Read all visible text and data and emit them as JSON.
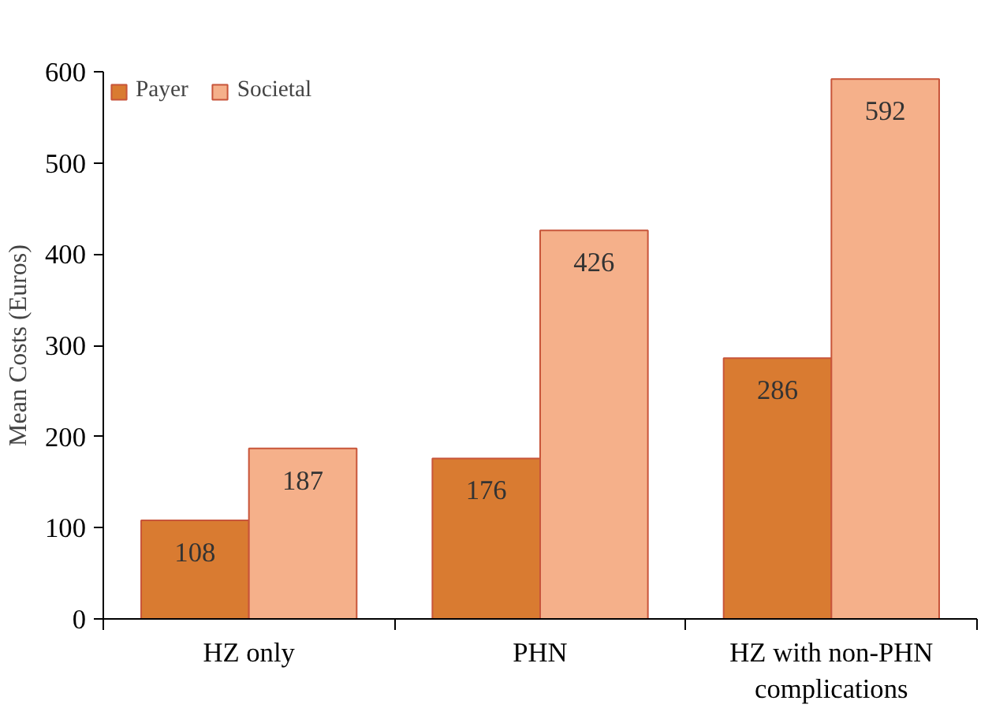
{
  "chart_data": {
    "type": "bar",
    "ylabel": "Mean Costs (Euros)",
    "categories": [
      "HZ only",
      "PHN",
      "HZ with non-PHN complications"
    ],
    "series": [
      {
        "name": "Payer",
        "color": "#d97b31",
        "values": [
          108,
          176,
          286
        ]
      },
      {
        "name": "Societal",
        "color": "#f5b08a",
        "values": [
          187,
          426,
          592
        ]
      }
    ],
    "ylim": [
      0,
      600
    ],
    "yticks": [
      0,
      100,
      200,
      300,
      400,
      500,
      600
    ],
    "grid": false,
    "legend": "top left",
    "data_labels": true
  }
}
